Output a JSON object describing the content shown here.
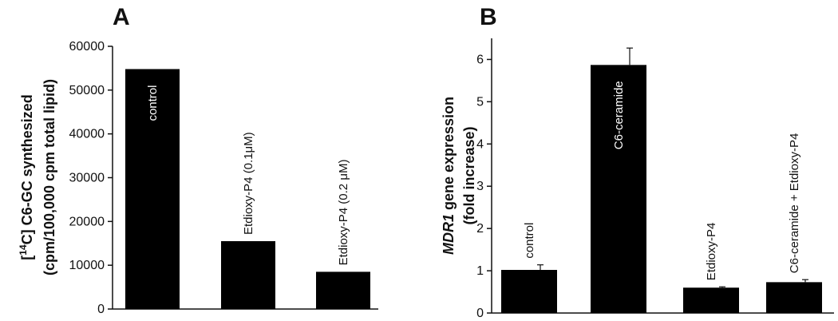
{
  "chart_data": [
    {
      "type": "bar",
      "panel_label": "A",
      "ylabel_line1_prefix": "[",
      "ylabel_line1_sup": "14",
      "ylabel_line1_rest": "C] C6-GC synthesized",
      "ylabel_line2": "(cpm/100,000 cpm total lipid)",
      "ylim": [
        0,
        60000
      ],
      "yticks": [
        0,
        10000,
        20000,
        30000,
        40000,
        50000,
        60000
      ],
      "categories": [
        "control",
        "Etdioxy-P4 (0.1μM)",
        "Etdioxy-P4 (0.2 μM)"
      ],
      "values": [
        54800,
        15500,
        8500
      ],
      "label_inside": [
        true,
        false,
        false
      ],
      "grid": false,
      "bar_color": "#000000"
    },
    {
      "type": "bar",
      "panel_label": "B",
      "ylabel_italic": "MDR1",
      "ylabel_line1_rest": " gene expression",
      "ylabel_line2": "(fold increase)",
      "ylim": [
        0,
        6.5
      ],
      "yticks": [
        0,
        1,
        2,
        3,
        4,
        5,
        6
      ],
      "categories": [
        "control",
        "C6-ceramide",
        "Etdioxy-P4",
        "C6-ceramide + Etdioxy-P4"
      ],
      "values": [
        1.02,
        5.87,
        0.6,
        0.73
      ],
      "errors": [
        0.12,
        0.4,
        0.02,
        0.06
      ],
      "label_inside": [
        false,
        true,
        false,
        false
      ],
      "grid": false,
      "bar_color": "#000000"
    }
  ]
}
